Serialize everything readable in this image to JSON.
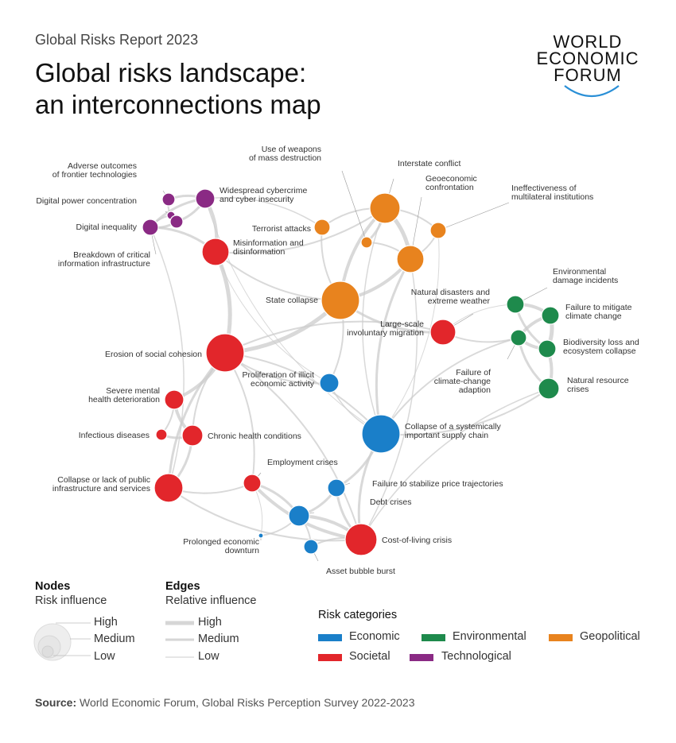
{
  "header": {
    "report": "Global Risks Report 2023",
    "title_line1": "Global risks landscape:",
    "title_line2": "an interconnections map"
  },
  "logo": {
    "line1": "WORLD",
    "line2": "ECONOMIC",
    "line3": "FORUM"
  },
  "colors": {
    "economic": "#1a7fc9",
    "environmental": "#1e8a4c",
    "geopolitical": "#e8831e",
    "societal": "#e2262b",
    "technological": "#8a2a84"
  },
  "nodes": [
    {
      "id": "adverse-outcomes",
      "label": "Adverse outcomes\nof frontier technologies",
      "category": "technological"
    },
    {
      "id": "digital-power",
      "label": "Digital power concentration",
      "category": "technological"
    },
    {
      "id": "digital-inequality",
      "label": "Digital inequality",
      "category": "technological"
    },
    {
      "id": "breakdown-cii",
      "label": "Breakdown of critical\ninformation infrastructure",
      "category": "technological"
    },
    {
      "id": "cybercrime",
      "label": "Widespread cybercrime\nand cyber insecurity",
      "category": "technological"
    },
    {
      "id": "misinformation",
      "label": "Misinformation and\ndisinformation",
      "category": "societal"
    },
    {
      "id": "terrorist",
      "label": "Terrorist attacks",
      "category": "geopolitical"
    },
    {
      "id": "wmd",
      "label": "Use of weapons\nof mass destruction",
      "category": "geopolitical"
    },
    {
      "id": "interstate",
      "label": "Interstate conflict",
      "category": "geopolitical"
    },
    {
      "id": "geoeconomic",
      "label": "Geoeconomic\nconfrontation",
      "category": "geopolitical"
    },
    {
      "id": "multilateral",
      "label": "Ineffectiveness of\nmultilateral institutions",
      "category": "geopolitical"
    },
    {
      "id": "state-collapse",
      "label": "State collapse",
      "category": "geopolitical"
    },
    {
      "id": "natural-disasters",
      "label": "Natural disasters and\nextreme weather",
      "category": "environmental"
    },
    {
      "id": "env-damage",
      "label": "Environmental\ndamage incidents",
      "category": "environmental"
    },
    {
      "id": "mitigate",
      "label": "Failure to mitigate\nclimate change",
      "category": "environmental"
    },
    {
      "id": "biodiversity",
      "label": "Biodiversity loss and\necosystem collapse",
      "category": "environmental"
    },
    {
      "id": "adaption",
      "label": "Failure of\nclimate-change\nadaption",
      "category": "environmental"
    },
    {
      "id": "natural-resource",
      "label": "Natural resource\ncrises",
      "category": "environmental"
    },
    {
      "id": "migration",
      "label": "Large-scale\ninvoluntary migration",
      "category": "societal"
    },
    {
      "id": "social-cohesion",
      "label": "Erosion of social cohesion",
      "category": "societal"
    },
    {
      "id": "illicit",
      "label": "Proliferation of illicit\neconomic activity",
      "category": "economic"
    },
    {
      "id": "supply-chain",
      "label": "Collapse of a systemically\nimportant supply chain",
      "category": "economic"
    },
    {
      "id": "mental-health",
      "label": "Severe mental\nhealth deterioration",
      "category": "societal"
    },
    {
      "id": "infectious",
      "label": "Infectious diseases",
      "category": "societal"
    },
    {
      "id": "chronic",
      "label": "Chronic health conditions",
      "category": "societal"
    },
    {
      "id": "public-infra",
      "label": "Collapse or lack of public\ninfrastructure and services",
      "category": "societal"
    },
    {
      "id": "employment",
      "label": "Employment crises",
      "category": "societal"
    },
    {
      "id": "price",
      "label": "Failure to stabilize price trajectories",
      "category": "economic"
    },
    {
      "id": "debt",
      "label": "Debt crises",
      "category": "economic"
    },
    {
      "id": "prolonged",
      "label": "Prolonged economic\ndownturn",
      "category": "economic"
    },
    {
      "id": "cost-of-living",
      "label": "Cost-of-living crisis",
      "category": "societal"
    },
    {
      "id": "asset-bubble",
      "label": "Asset bubble burst",
      "category": "economic"
    }
  ],
  "legend": {
    "nodes_title": "Nodes",
    "nodes_sub": "Risk influence",
    "edges_title": "Edges",
    "edges_sub": "Relative influence",
    "high": "High",
    "medium": "Medium",
    "low": "Low",
    "categories_title": "Risk categories",
    "economic": "Economic",
    "environmental": "Environmental",
    "geopolitical": "Geopolitical",
    "societal": "Societal",
    "technological": "Technological"
  },
  "source": {
    "label": "Source:",
    "text": "World Economic Forum, Global Risks Perception Survey 2022-2023"
  }
}
